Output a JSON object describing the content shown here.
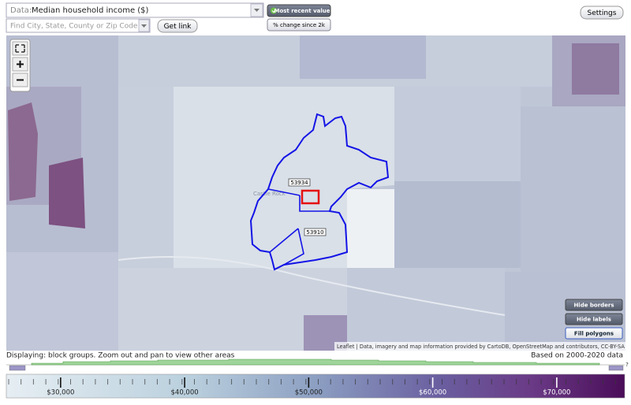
{
  "toolbar": {
    "data_label": "Data:",
    "data_select": "Median household income ($)",
    "search_placeholder": "Find City, State, County or Zip Code",
    "get_link": "Get link",
    "most_recent": "Most recent value",
    "change": "% change since 2k",
    "settings": "Settings"
  },
  "map": {
    "place": "Castle Rock",
    "labels": [
      "53934",
      "53910"
    ],
    "buttons": [
      "Hide borders",
      "Hide labels",
      "Fill polygons"
    ],
    "attribution": "Leaflet | Data, imagery and map information provided by CartoDB, OpenStreetMap and contributors, CC-BY-SA"
  },
  "status": {
    "displaying": "Displaying: block groups. Zoom out and pan to view other areas",
    "based_on": "Based on 2000-2020 data",
    "help": "?"
  },
  "legend": {
    "range": [
      25750,
      75350
    ],
    "ticks": [
      {
        "value": 30000,
        "label": "$30,000"
      },
      {
        "value": 40000,
        "label": "$40,000"
      },
      {
        "value": 50000,
        "label": "$50,000"
      },
      {
        "value": 60000,
        "label": "$60,000"
      },
      {
        "value": 70000,
        "label": "$70,000"
      }
    ]
  }
}
